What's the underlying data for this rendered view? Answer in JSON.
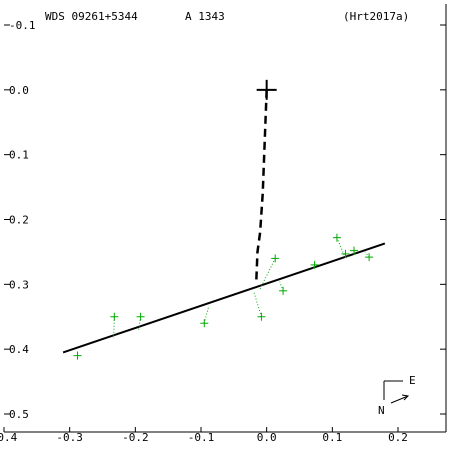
{
  "header": {
    "wds": "WDS 09261+5344",
    "pair": "A  1343",
    "ref": "(Hrt2017a)"
  },
  "compass": {
    "north": "N",
    "east": "E"
  },
  "colors": {
    "axes": "#000000",
    "orbit": "#000000",
    "observations": "#00aa00",
    "residuals": "#00aa00"
  },
  "chart_data": {
    "type": "scatter",
    "xlim": [
      -0.4,
      0.2
    ],
    "ylim": [
      -0.5,
      0.1
    ],
    "x_ticks": [
      "-0.4",
      "-0.3",
      "-0.2",
      "-0.1",
      "0.0",
      "0.1",
      "0.2"
    ],
    "y_ticks": [
      "-0.1",
      "0.0",
      "0.1",
      "0.2",
      "0.3",
      "0.4",
      "0.5"
    ],
    "y_tick_values": [
      0.1,
      0.0,
      -0.1,
      -0.2,
      -0.3,
      -0.4,
      -0.5
    ],
    "primary": [
      0.0,
      0.0
    ],
    "orbit_line": [
      [
        -0.31,
        -0.405
      ],
      [
        0.18,
        -0.237
      ]
    ],
    "dashed_path": [
      [
        0.0,
        0.0
      ],
      [
        -0.003,
        -0.08
      ],
      [
        -0.006,
        -0.16
      ],
      [
        -0.01,
        -0.22
      ],
      [
        -0.014,
        -0.25
      ],
      [
        -0.016,
        -0.3
      ]
    ],
    "observations": [
      {
        "x": -0.288,
        "y": -0.41,
        "fx": -0.288,
        "fy": -0.403
      },
      {
        "x": -0.232,
        "y": -0.35,
        "fx": -0.233,
        "fy": -0.383
      },
      {
        "x": -0.192,
        "y": -0.35,
        "fx": -0.195,
        "fy": -0.37
      },
      {
        "x": -0.095,
        "y": -0.36,
        "fx": -0.088,
        "fy": -0.333
      },
      {
        "x": -0.008,
        "y": -0.35,
        "fx": -0.02,
        "fy": -0.31
      },
      {
        "x": 0.013,
        "y": -0.26,
        "fx": -0.01,
        "fy": -0.307
      },
      {
        "x": 0.025,
        "y": -0.31,
        "fx": 0.02,
        "fy": -0.296
      },
      {
        "x": 0.073,
        "y": -0.27,
        "fx": 0.07,
        "fy": -0.278
      },
      {
        "x": 0.107,
        "y": -0.228,
        "fx": 0.12,
        "fy": -0.26
      },
      {
        "x": 0.12,
        "y": -0.253,
        "fx": 0.125,
        "fy": -0.258
      },
      {
        "x": 0.133,
        "y": -0.248,
        "fx": 0.135,
        "fy": -0.255
      },
      {
        "x": 0.156,
        "y": -0.258,
        "fx": 0.15,
        "fy": -0.25
      }
    ]
  }
}
